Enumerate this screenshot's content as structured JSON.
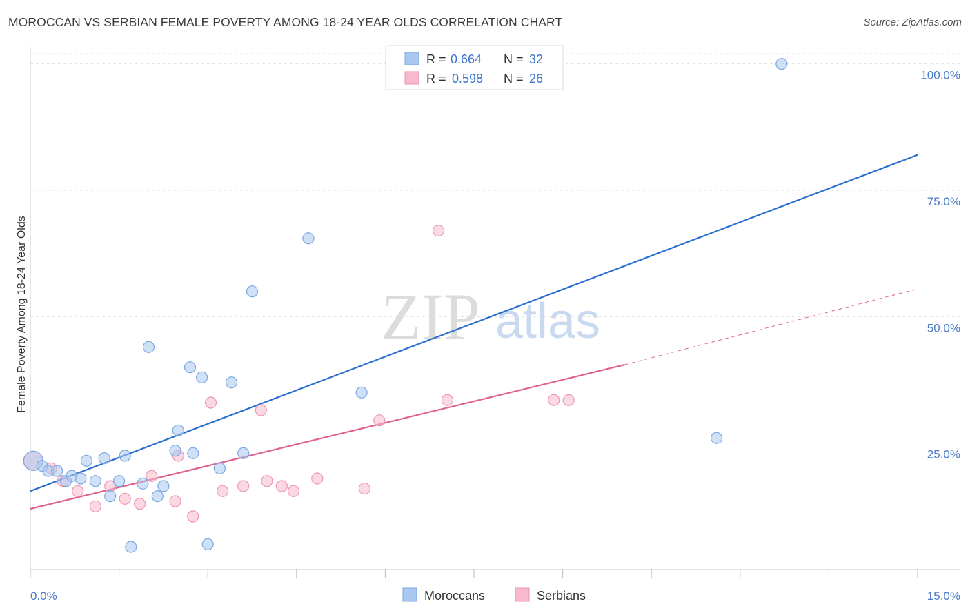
{
  "header": {
    "title": "MOROCCAN VS SERBIAN FEMALE POVERTY AMONG 18-24 YEAR OLDS CORRELATION CHART",
    "source": "Source: ZipAtlas.com"
  },
  "legend_top": [
    {
      "r_label": "R =",
      "r_value": "0.664",
      "n_label": "N =",
      "n_value": "32",
      "color": "#a9c8f0"
    },
    {
      "r_label": "R =",
      "r_value": "0.598",
      "n_label": "N =",
      "n_value": "26",
      "color": "#f7b9cc"
    }
  ],
  "watermark": {
    "zip": "ZIP",
    "atlas": "atlas"
  },
  "colors": {
    "moroccans_fill": "#a9c8f0",
    "moroccans_stroke": "#7aa7e0",
    "moroccans_line": "#2a6fd0",
    "serbians_fill": "#f7b9cc",
    "serbians_stroke": "#ee94b0",
    "serbians_line": "#e0628e",
    "tick_text": "#4a7cc9"
  },
  "chart_data": {
    "type": "scatter",
    "title": "MOROCCAN VS SERBIAN FEMALE POVERTY AMONG 18-24 YEAR OLDS CORRELATION CHART",
    "xlabel": "",
    "ylabel": "Female Poverty Among 18-24 Year Olds",
    "xlim": [
      0,
      15
    ],
    "ylim": [
      0,
      102
    ],
    "x_tick_labels": [
      "0.0%",
      "15.0%"
    ],
    "y_ticks": [
      25,
      50,
      75,
      100
    ],
    "y_tick_labels": [
      "25.0%",
      "50.0%",
      "75.0%",
      "100.0%"
    ],
    "grid": true,
    "legend_position": "top-center",
    "series": [
      {
        "name": "Moroccans",
        "points": [
          [
            0.05,
            21.5
          ],
          [
            0.2,
            20.5
          ],
          [
            0.3,
            19.5
          ],
          [
            0.45,
            19.5
          ],
          [
            0.6,
            17.5
          ],
          [
            0.7,
            18.5
          ],
          [
            0.85,
            18.0
          ],
          [
            0.95,
            21.5
          ],
          [
            1.1,
            17.5
          ],
          [
            1.25,
            22.0
          ],
          [
            1.35,
            14.5
          ],
          [
            1.5,
            17.5
          ],
          [
            1.6,
            22.5
          ],
          [
            1.7,
            4.5
          ],
          [
            1.9,
            17.0
          ],
          [
            2.0,
            44.0
          ],
          [
            2.15,
            14.5
          ],
          [
            2.25,
            16.5
          ],
          [
            2.45,
            23.5
          ],
          [
            2.5,
            27.5
          ],
          [
            2.7,
            40.0
          ],
          [
            2.75,
            23.0
          ],
          [
            2.9,
            38.0
          ],
          [
            3.0,
            5.0
          ],
          [
            3.2,
            20.0
          ],
          [
            3.4,
            37.0
          ],
          [
            3.6,
            23.0
          ],
          [
            3.75,
            55.0
          ],
          [
            4.7,
            65.5
          ],
          [
            5.6,
            35.0
          ],
          [
            11.6,
            26.0
          ],
          [
            12.7,
            100.0
          ]
        ],
        "trend": {
          "x1": 0,
          "y1": 15.5,
          "x2": 15,
          "y2": 82.0
        }
      },
      {
        "name": "Serbians",
        "points": [
          [
            0.05,
            21.5
          ],
          [
            0.35,
            20.0
          ],
          [
            0.55,
            17.5
          ],
          [
            0.8,
            15.5
          ],
          [
            1.1,
            12.5
          ],
          [
            1.35,
            16.5
          ],
          [
            1.6,
            14.0
          ],
          [
            1.85,
            13.0
          ],
          [
            2.05,
            18.5
          ],
          [
            2.45,
            13.5
          ],
          [
            2.5,
            22.5
          ],
          [
            2.75,
            10.5
          ],
          [
            3.05,
            33.0
          ],
          [
            3.25,
            15.5
          ],
          [
            3.6,
            16.5
          ],
          [
            3.9,
            31.5
          ],
          [
            4.0,
            17.5
          ],
          [
            4.25,
            16.5
          ],
          [
            4.45,
            15.5
          ],
          [
            4.85,
            18.0
          ],
          [
            5.65,
            16.0
          ],
          [
            5.9,
            29.5
          ],
          [
            6.9,
            67.0
          ],
          [
            7.05,
            33.5
          ],
          [
            8.85,
            33.5
          ],
          [
            9.1,
            33.5
          ]
        ],
        "trend": {
          "x1": 0,
          "y1": 12.0,
          "x2": 10.05,
          "y2": 40.5
        },
        "trend_extension": {
          "x1": 10.05,
          "y1": 40.5,
          "x2": 15,
          "y2": 55.5
        }
      }
    ]
  },
  "legend_bottom": [
    {
      "label": "Moroccans",
      "color": "#a9c8f0"
    },
    {
      "label": "Serbians",
      "color": "#f7b9cc"
    }
  ]
}
